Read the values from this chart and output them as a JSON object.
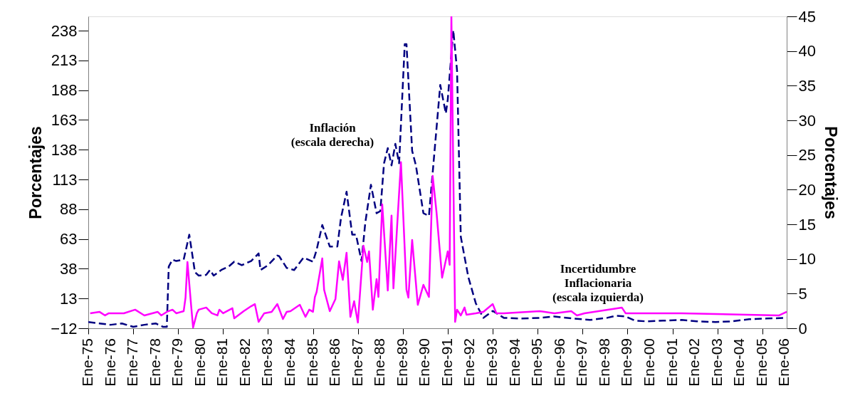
{
  "chart_data": {
    "type": "line",
    "ylabel": "Porcentajes",
    "y2label": "Porcentajes",
    "xlim": [
      "1975-01",
      "2006-02"
    ],
    "xticks": [
      {
        "value": "1975-01",
        "label": "Ene-75"
      },
      {
        "value": "1976-01",
        "label": "Ene-76"
      },
      {
        "value": "1977-01",
        "label": "Ene-77"
      },
      {
        "value": "1978-01",
        "label": "Ene-78"
      },
      {
        "value": "1979-01",
        "label": "Ene-79"
      },
      {
        "value": "1980-01",
        "label": "Ene-80"
      },
      {
        "value": "1981-01",
        "label": "Ene-81"
      },
      {
        "value": "1982-01",
        "label": "Ene-82"
      },
      {
        "value": "1983-01",
        "label": "Ene-83"
      },
      {
        "value": "1984-01",
        "label": "Ene-84"
      },
      {
        "value": "1985-01",
        "label": "Ene-85"
      },
      {
        "value": "1986-01",
        "label": "Ene-86"
      },
      {
        "value": "1987-01",
        "label": "Ene-87"
      },
      {
        "value": "1988-01",
        "label": "Ene-88"
      },
      {
        "value": "1989-01",
        "label": "Ene-89"
      },
      {
        "value": "1990-01",
        "label": "Ene-90"
      },
      {
        "value": "1991-01",
        "label": "Ene-91"
      },
      {
        "value": "1992-01",
        "label": "Ene-92"
      },
      {
        "value": "1993-01",
        "label": "Ene-93"
      },
      {
        "value": "1994-01",
        "label": "Ene-94"
      },
      {
        "value": "1995-01",
        "label": "Ene-95"
      },
      {
        "value": "1996-01",
        "label": "Ene-96"
      },
      {
        "value": "1997-01",
        "label": "Ene-97"
      },
      {
        "value": "1998-01",
        "label": "Ene-98"
      },
      {
        "value": "1999-01",
        "label": "Ene-99"
      },
      {
        "value": "2000-01",
        "label": "Ene-00"
      },
      {
        "value": "2001-01",
        "label": "Ene-01"
      },
      {
        "value": "2002-01",
        "label": "Ene-02"
      },
      {
        "value": "2003-01",
        "label": "Ene-03"
      },
      {
        "value": "2004-01",
        "label": "Ene-04"
      },
      {
        "value": "2005-01",
        "label": "Ene-05"
      },
      {
        "value": "2006-01",
        "label": "Ene-06"
      }
    ],
    "ylim": [
      -12,
      250
    ],
    "yticks": [
      -12,
      13,
      38,
      63,
      88,
      113,
      138,
      163,
      188,
      213,
      238
    ],
    "y2lim": [
      0,
      45
    ],
    "y2ticks": [
      0,
      5,
      10,
      15,
      20,
      25,
      30,
      35,
      40,
      45
    ],
    "grid": false,
    "marker": "none",
    "series": [
      {
        "name": "Inflación\n(escala derecha)",
        "color": "#000080",
        "axis": "y2",
        "line_style": "dashed",
        "x": [
          "1975-01",
          "1975-07",
          "1976-01",
          "1976-07",
          "1977-01",
          "1977-07",
          "1978-01",
          "1978-05",
          "1978-07",
          "1978-08",
          "1978-10",
          "1978-12",
          "1979-04",
          "1979-07",
          "1979-10",
          "1979-12",
          "1980-04",
          "1980-06",
          "1980-08",
          "1980-12",
          "1981-04",
          "1981-07",
          "1981-11",
          "1982-04",
          "1982-08",
          "1982-09",
          "1983-01",
          "1983-06",
          "1983-07",
          "1983-11",
          "1984-03",
          "1984-08",
          "1985-01",
          "1985-03",
          "1985-06",
          "1985-10",
          "1986-02",
          "1986-04",
          "1986-07",
          "1986-10",
          "1986-12",
          "1987-03",
          "1987-05",
          "1987-08",
          "1987-11",
          "1988-01",
          "1988-03",
          "1988-05",
          "1988-07",
          "1988-09",
          "1988-11",
          "1989-02",
          "1989-03",
          "1989-06",
          "1989-08",
          "1989-12",
          "1990-03",
          "1990-09",
          "1990-12",
          "1991-01",
          "1991-04",
          "1991-06",
          "1991-08",
          "1991-12",
          "1992-04",
          "1992-08",
          "1993-01",
          "1993-07",
          "1994-05",
          "1995-02",
          "1995-10",
          "1996-08",
          "1997-05",
          "1998-02",
          "1998-07",
          "1998-12",
          "1999-05",
          "1999-11",
          "2000-08",
          "2001-06",
          "2002-02",
          "2002-12",
          "2003-09",
          "2004-06",
          "2005-03",
          "2006-02"
        ],
        "values": [
          0.9,
          0.7,
          0.5,
          0.7,
          0.2,
          0.5,
          0.7,
          0.2,
          0.2,
          8.9,
          9.9,
          9.7,
          9.9,
          13.5,
          8.1,
          7.6,
          7.7,
          8.4,
          7.6,
          8.4,
          8.9,
          9.6,
          9.1,
          9.7,
          10.8,
          8.4,
          9.1,
          10.5,
          10.4,
          8.7,
          8.4,
          10.2,
          9.6,
          11.3,
          14.9,
          11.8,
          11.8,
          15.9,
          19.7,
          13.5,
          13.5,
          9.7,
          15.2,
          20.7,
          16.6,
          16.9,
          23.8,
          26.0,
          23.5,
          26.6,
          23.8,
          41.0,
          41.0,
          25.6,
          23.5,
          16.6,
          16.2,
          35.1,
          31.0,
          33.0,
          43.0,
          37.2,
          13.2,
          7.4,
          3.6,
          1.5,
          2.5,
          1.5,
          1.4,
          1.5,
          1.7,
          1.4,
          1.2,
          1.5,
          1.8,
          1.7,
          1.1,
          1.0,
          1.1,
          1.2,
          1.0,
          0.9,
          1.0,
          1.3,
          1.4,
          1.5
        ]
      },
      {
        "name": "Incertidumbre\nInflacionaria\n(escala izquierda)",
        "color": "#ff00ff",
        "axis": "y",
        "line_style": "solid",
        "x": [
          "1975-02",
          "1975-07",
          "1975-10",
          "1975-12",
          "1976-08",
          "1977-02",
          "1977-07",
          "1978-02",
          "1978-04",
          "1978-07",
          "1978-10",
          "1978-12",
          "1979-04",
          "1979-05",
          "1979-06",
          "1979-08",
          "1979-09",
          "1979-11",
          "1979-12",
          "1980-04",
          "1980-07",
          "1980-10",
          "1980-11",
          "1981-01",
          "1981-06",
          "1981-07",
          "1981-12",
          "1982-04",
          "1982-06",
          "1982-08",
          "1982-11",
          "1983-03",
          "1983-06",
          "1983-09",
          "1983-11",
          "1984-01",
          "1984-06",
          "1984-09",
          "1984-11",
          "1985-01",
          "1985-02",
          "1985-03",
          "1985-06",
          "1985-07",
          "1985-10",
          "1986-01",
          "1986-03",
          "1986-05",
          "1986-07",
          "1986-09",
          "1986-11",
          "1987-01",
          "1987-04",
          "1987-06",
          "1987-07",
          "1987-09",
          "1987-11",
          "1987-12",
          "1988-02",
          "1988-05",
          "1988-07",
          "1988-08",
          "1988-12",
          "1989-03",
          "1989-04",
          "1989-06",
          "1989-09",
          "1989-12",
          "1990-03",
          "1990-05",
          "1990-07",
          "1990-10",
          "1991-01",
          "1991-02",
          "1991-03",
          "1991-05",
          "1991-06",
          "1991-08",
          "1991-10",
          "1991-11",
          "1992-04",
          "1992-08",
          "1993-01",
          "1993-03",
          "1993-07",
          "1995-02",
          "1995-10",
          "1996-07",
          "1996-10",
          "1997-02",
          "1998-10",
          "1998-12",
          "2001-06",
          "2005-10",
          "2006-02"
        ],
        "values": [
          0.6,
          1.8,
          -1.2,
          0.6,
          0.6,
          3.6,
          -1.2,
          1.8,
          -1.2,
          1.8,
          3.6,
          0.6,
          2.4,
          13.7,
          43.7,
          6.5,
          -11.4,
          0.6,
          3.6,
          5.4,
          0.6,
          -1.2,
          3.6,
          0.6,
          4.8,
          -3.6,
          2.4,
          6.5,
          8.3,
          -6.6,
          0.6,
          1.8,
          8.3,
          -4.2,
          1.8,
          2.4,
          7.7,
          -2.4,
          3.6,
          1.8,
          14.3,
          18.5,
          46.7,
          20.3,
          2.4,
          12.5,
          44.3,
          28.7,
          51.4,
          -2.4,
          10.7,
          -7.2,
          57.4,
          43.7,
          52.6,
          3.6,
          29.3,
          14.3,
          92.1,
          19.7,
          82.6,
          21.5,
          127.5,
          20.3,
          13.7,
          62.2,
          7.7,
          24.5,
          14.3,
          116.0,
          86.2,
          30.5,
          52.6,
          41.3,
          250.0,
          -6.6,
          3.6,
          -1.2,
          5.4,
          -0.6,
          0.6,
          1.8,
          8.3,
          0.6,
          0.6,
          2.4,
          0.6,
          2.4,
          -1.2,
          0.6,
          5.4,
          0.6,
          0.6,
          -1.2,
          1.8
        ]
      }
    ]
  }
}
